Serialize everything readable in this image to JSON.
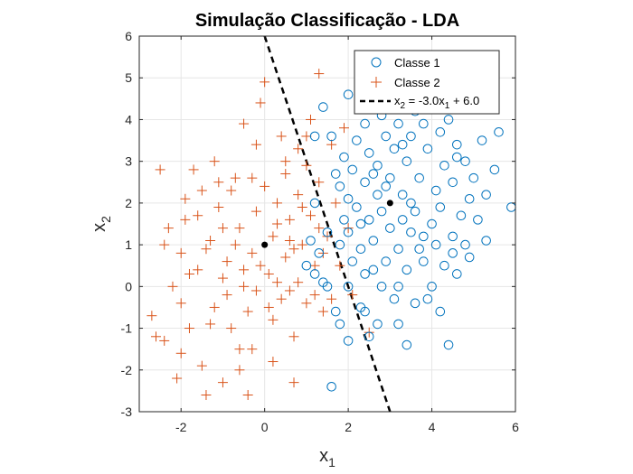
{
  "chart_data": {
    "type": "scatter",
    "title": "Simulação Classificação - LDA",
    "xlabel": {
      "base": "x",
      "sub": "1"
    },
    "ylabel": {
      "base": "x",
      "sub": "2"
    },
    "xlim": [
      -3,
      6
    ],
    "ylim": [
      -3,
      6
    ],
    "x_ticks": [
      -2,
      0,
      2,
      4,
      6
    ],
    "y_ticks": [
      -3,
      -2,
      -1,
      0,
      1,
      2,
      3,
      4,
      5,
      6
    ],
    "grid": true,
    "legend_position": "top-right",
    "colors": {
      "classe1": "#0072BD",
      "classe2": "#D95319",
      "boundary": "#000000",
      "axis": "#262626",
      "grid": "#e6e6e6"
    },
    "series": [
      {
        "name": "Classe 1",
        "marker": "circle",
        "centroid": [
          3,
          2
        ],
        "points": [
          [
            2.0,
            -1.3
          ],
          [
            2.5,
            -1.2
          ],
          [
            1.6,
            -2.4
          ],
          [
            3.4,
            -1.4
          ],
          [
            4.4,
            -1.4
          ],
          [
            3.2,
            -0.9
          ],
          [
            2.7,
            -0.9
          ],
          [
            1.8,
            -0.9
          ],
          [
            2.3,
            -0.5
          ],
          [
            1.7,
            -0.6
          ],
          [
            2.4,
            -0.6
          ],
          [
            4.2,
            -0.6
          ],
          [
            3.6,
            -0.4
          ],
          [
            3.9,
            -0.3
          ],
          [
            1.5,
            0.0
          ],
          [
            2.0,
            0.0
          ],
          [
            2.8,
            0.0
          ],
          [
            3.2,
            0.0
          ],
          [
            4.0,
            0.0
          ],
          [
            4.6,
            0.3
          ],
          [
            1.2,
            0.3
          ],
          [
            1.4,
            0.1
          ],
          [
            2.4,
            0.3
          ],
          [
            3.4,
            0.4
          ],
          [
            4.3,
            0.5
          ],
          [
            1.0,
            0.5
          ],
          [
            2.1,
            0.6
          ],
          [
            2.9,
            0.6
          ],
          [
            3.8,
            0.6
          ],
          [
            4.9,
            0.7
          ],
          [
            1.3,
            0.8
          ],
          [
            2.3,
            0.9
          ],
          [
            3.2,
            0.9
          ],
          [
            3.7,
            0.9
          ],
          [
            1.8,
            1.0
          ],
          [
            2.6,
            1.1
          ],
          [
            4.1,
            1.0
          ],
          [
            4.8,
            1.0
          ],
          [
            5.3,
            1.1
          ],
          [
            1.5,
            1.3
          ],
          [
            2.0,
            1.3
          ],
          [
            3.0,
            1.4
          ],
          [
            3.5,
            1.3
          ],
          [
            4.5,
            1.2
          ],
          [
            1.9,
            1.6
          ],
          [
            2.5,
            1.6
          ],
          [
            3.3,
            1.6
          ],
          [
            4.0,
            1.5
          ],
          [
            5.1,
            1.6
          ],
          [
            2.2,
            1.9
          ],
          [
            2.8,
            1.8
          ],
          [
            3.6,
            1.8
          ],
          [
            4.2,
            1.9
          ],
          [
            4.9,
            2.1
          ],
          [
            5.9,
            1.9
          ],
          [
            2.0,
            2.1
          ],
          [
            2.7,
            2.2
          ],
          [
            3.3,
            2.2
          ],
          [
            4.1,
            2.3
          ],
          [
            5.3,
            2.2
          ],
          [
            1.8,
            2.4
          ],
          [
            2.4,
            2.5
          ],
          [
            3.0,
            2.6
          ],
          [
            3.7,
            2.6
          ],
          [
            4.5,
            2.5
          ],
          [
            5.5,
            2.8
          ],
          [
            2.1,
            2.8
          ],
          [
            2.7,
            2.9
          ],
          [
            3.4,
            3.0
          ],
          [
            4.3,
            2.9
          ],
          [
            4.8,
            3.0
          ],
          [
            1.9,
            3.1
          ],
          [
            2.5,
            3.2
          ],
          [
            3.1,
            3.3
          ],
          [
            3.9,
            3.3
          ],
          [
            4.6,
            3.4
          ],
          [
            5.2,
            3.5
          ],
          [
            2.2,
            3.5
          ],
          [
            2.9,
            3.6
          ],
          [
            3.5,
            3.6
          ],
          [
            4.2,
            3.7
          ],
          [
            5.6,
            3.7
          ],
          [
            1.6,
            3.6
          ],
          [
            2.4,
            3.9
          ],
          [
            3.2,
            3.9
          ],
          [
            3.8,
            3.9
          ],
          [
            4.4,
            4.0
          ],
          [
            1.2,
            3.6
          ],
          [
            2.8,
            4.1
          ],
          [
            3.6,
            4.2
          ],
          [
            1.4,
            4.3
          ],
          [
            4.0,
            4.4
          ],
          [
            2.0,
            4.6
          ],
          [
            2.3,
            5.2
          ],
          [
            3.0,
            4.5
          ],
          [
            4.6,
            3.1
          ],
          [
            5.0,
            2.6
          ],
          [
            2.6,
            0.4
          ],
          [
            3.1,
            -0.3
          ],
          [
            1.7,
            2.7
          ],
          [
            3.8,
            1.2
          ],
          [
            4.5,
            0.8
          ],
          [
            2.9,
            2.4
          ],
          [
            3.5,
            2.0
          ],
          [
            2.3,
            1.5
          ],
          [
            4.7,
            1.7
          ],
          [
            3.3,
            3.4
          ],
          [
            2.6,
            2.7
          ],
          [
            1.1,
            1.1
          ],
          [
            1.2,
            2.0
          ]
        ]
      },
      {
        "name": "Classe 2",
        "marker": "plus",
        "centroid": [
          0,
          1
        ],
        "points": [
          [
            -2.5,
            2.8
          ],
          [
            -2.7,
            -0.7
          ],
          [
            -2.4,
            -1.3
          ],
          [
            -2.0,
            -1.6
          ],
          [
            -1.4,
            -2.6
          ],
          [
            -1.0,
            -2.3
          ],
          [
            -0.4,
            -2.6
          ],
          [
            -0.6,
            -2.0
          ],
          [
            -1.8,
            -1.0
          ],
          [
            -2.2,
            0.0
          ],
          [
            -2.0,
            0.8
          ],
          [
            -2.4,
            1.0
          ],
          [
            -1.9,
            1.6
          ],
          [
            -1.5,
            2.3
          ],
          [
            -1.6,
            0.4
          ],
          [
            -1.2,
            -0.5
          ],
          [
            -1.3,
            1.1
          ],
          [
            -1.0,
            0.2
          ],
          [
            -1.1,
            1.9
          ],
          [
            -0.8,
            -1.0
          ],
          [
            -0.9,
            0.6
          ],
          [
            -0.7,
            2.6
          ],
          [
            -0.6,
            1.4
          ],
          [
            -0.5,
            0.0
          ],
          [
            -0.4,
            -0.6
          ],
          [
            -0.3,
            0.8
          ],
          [
            -0.2,
            1.8
          ],
          [
            -0.2,
            3.4
          ],
          [
            0.0,
            2.4
          ],
          [
            0.1,
            0.3
          ],
          [
            0.2,
            -0.8
          ],
          [
            0.2,
            1.2
          ],
          [
            0.3,
            2.0
          ],
          [
            0.4,
            -0.3
          ],
          [
            0.5,
            0.7
          ],
          [
            0.5,
            3.0
          ],
          [
            0.6,
            1.6
          ],
          [
            0.7,
            -1.2
          ],
          [
            0.8,
            0.1
          ],
          [
            0.8,
            2.2
          ],
          [
            0.9,
            1.0
          ],
          [
            1.0,
            -0.4
          ],
          [
            1.0,
            2.9
          ],
          [
            1.1,
            1.7
          ],
          [
            1.2,
            0.5
          ],
          [
            1.3,
            2.5
          ],
          [
            1.4,
            -0.6
          ],
          [
            1.5,
            1.2
          ],
          [
            1.6,
            3.4
          ],
          [
            1.7,
            2.0
          ],
          [
            1.3,
            5.1
          ],
          [
            0.0,
            4.9
          ],
          [
            -0.1,
            4.4
          ],
          [
            0.7,
            -2.3
          ],
          [
            2.1,
            -0.2
          ],
          [
            2.5,
            -1.1
          ],
          [
            -1.5,
            -1.9
          ],
          [
            -2.1,
            -2.2
          ],
          [
            -2.6,
            -1.2
          ],
          [
            -1.7,
            2.8
          ],
          [
            -1.2,
            3.0
          ],
          [
            -0.5,
            3.9
          ],
          [
            0.4,
            3.6
          ],
          [
            1.1,
            4.0
          ],
          [
            0.8,
            3.3
          ],
          [
            -1.4,
            0.9
          ],
          [
            -0.9,
            -0.2
          ],
          [
            -0.3,
            -1.5
          ],
          [
            0.2,
            -1.8
          ],
          [
            0.6,
            -0.1
          ],
          [
            -1.8,
            0.3
          ],
          [
            -2.3,
            1.4
          ],
          [
            -1.6,
            1.7
          ],
          [
            -0.7,
            1.0
          ],
          [
            -0.1,
            0.5
          ],
          [
            0.3,
            1.5
          ],
          [
            0.9,
            1.9
          ],
          [
            1.2,
            -0.2
          ],
          [
            1.4,
            0.8
          ],
          [
            1.8,
            0.5
          ],
          [
            1.9,
            3.8
          ],
          [
            2.0,
            1.4
          ],
          [
            -0.8,
            2.3
          ],
          [
            -0.3,
            2.6
          ],
          [
            0.5,
            2.7
          ],
          [
            -1.0,
            1.4
          ],
          [
            -0.5,
            0.4
          ],
          [
            -1.3,
            -0.9
          ],
          [
            -2.0,
            -0.4
          ],
          [
            -0.6,
            -1.5
          ],
          [
            0.1,
            -0.5
          ],
          [
            0.7,
            0.9
          ],
          [
            1.6,
            -0.3
          ],
          [
            1.0,
            3.6
          ],
          [
            -1.9,
            2.1
          ],
          [
            -1.1,
            2.5
          ],
          [
            -0.2,
            -0.1
          ],
          [
            0.3,
            0.1
          ],
          [
            1.3,
            1.4
          ],
          [
            0.6,
            1.1
          ]
        ]
      },
      {
        "name": "x₂ = -3.0x₁ + 6.0",
        "marker": "dashed-line",
        "slope": -3.0,
        "intercept": 6.0
      }
    ],
    "legend": {
      "classe1": "Classe 1",
      "classe2": "Classe 2",
      "line_pre": "x",
      "line_sub1": "2",
      "line_mid": " = -3.0x",
      "line_sub2": "1",
      "line_post": " + 6.0"
    }
  }
}
